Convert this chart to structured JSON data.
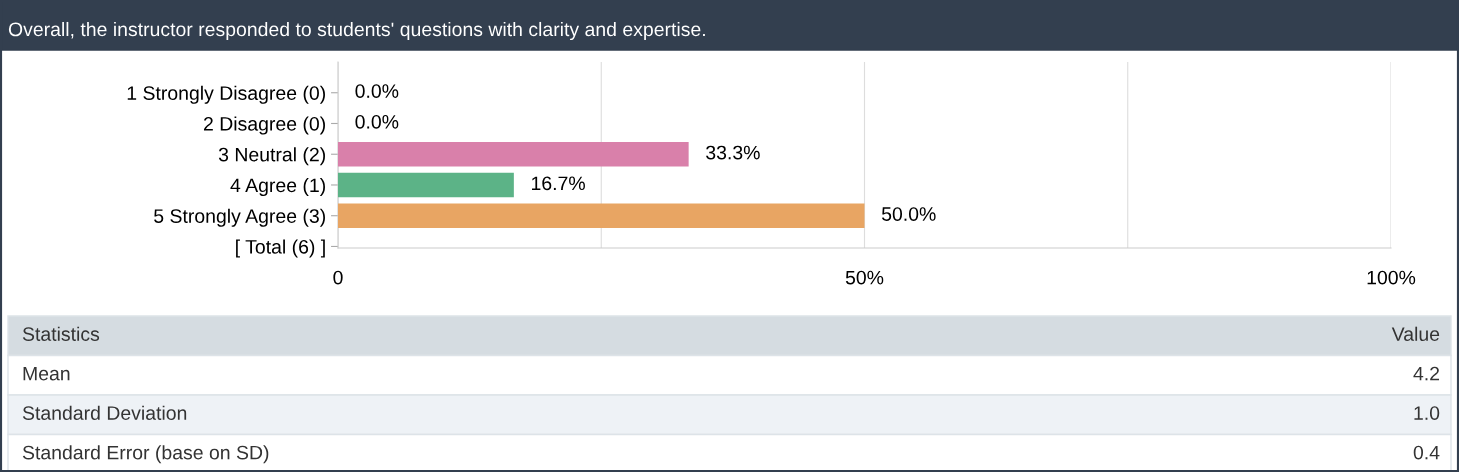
{
  "chart_data": {
    "type": "bar",
    "orientation": "horizontal",
    "title": "Overall, the instructor responded to students' questions with clarity and expertise.",
    "categories": [
      "1 Strongly Disagree (0)",
      "2 Disagree (0)",
      "3 Neutral (2)",
      "4 Agree (1)",
      "5 Strongly Agree (3)",
      "[ Total (6) ]"
    ],
    "values": [
      0,
      0,
      33.3,
      16.7,
      50.0,
      null
    ],
    "colors": [
      "#9aa5b1",
      "#9aa5b1",
      "#d980aa",
      "#5cb387",
      "#e8a563",
      "#9aa5b1"
    ],
    "value_labels": [
      "0.0%",
      "0.0%",
      "33.3%",
      "16.7%",
      "50.0%",
      null
    ],
    "xlim": [
      0,
      100
    ],
    "xticks": [
      {
        "value": 0,
        "label": "0"
      },
      {
        "value": 25,
        "label": null
      },
      {
        "value": 50,
        "label": "50%"
      },
      {
        "value": 75,
        "label": null
      },
      {
        "value": 100,
        "label": "100%"
      }
    ],
    "grid": "x",
    "annotations": [
      "Statistics",
      "Value",
      "Mean",
      "4.2",
      "Standard Deviation",
      "1.0",
      "Standard Error (base on SD)",
      "0.4"
    ]
  }
}
